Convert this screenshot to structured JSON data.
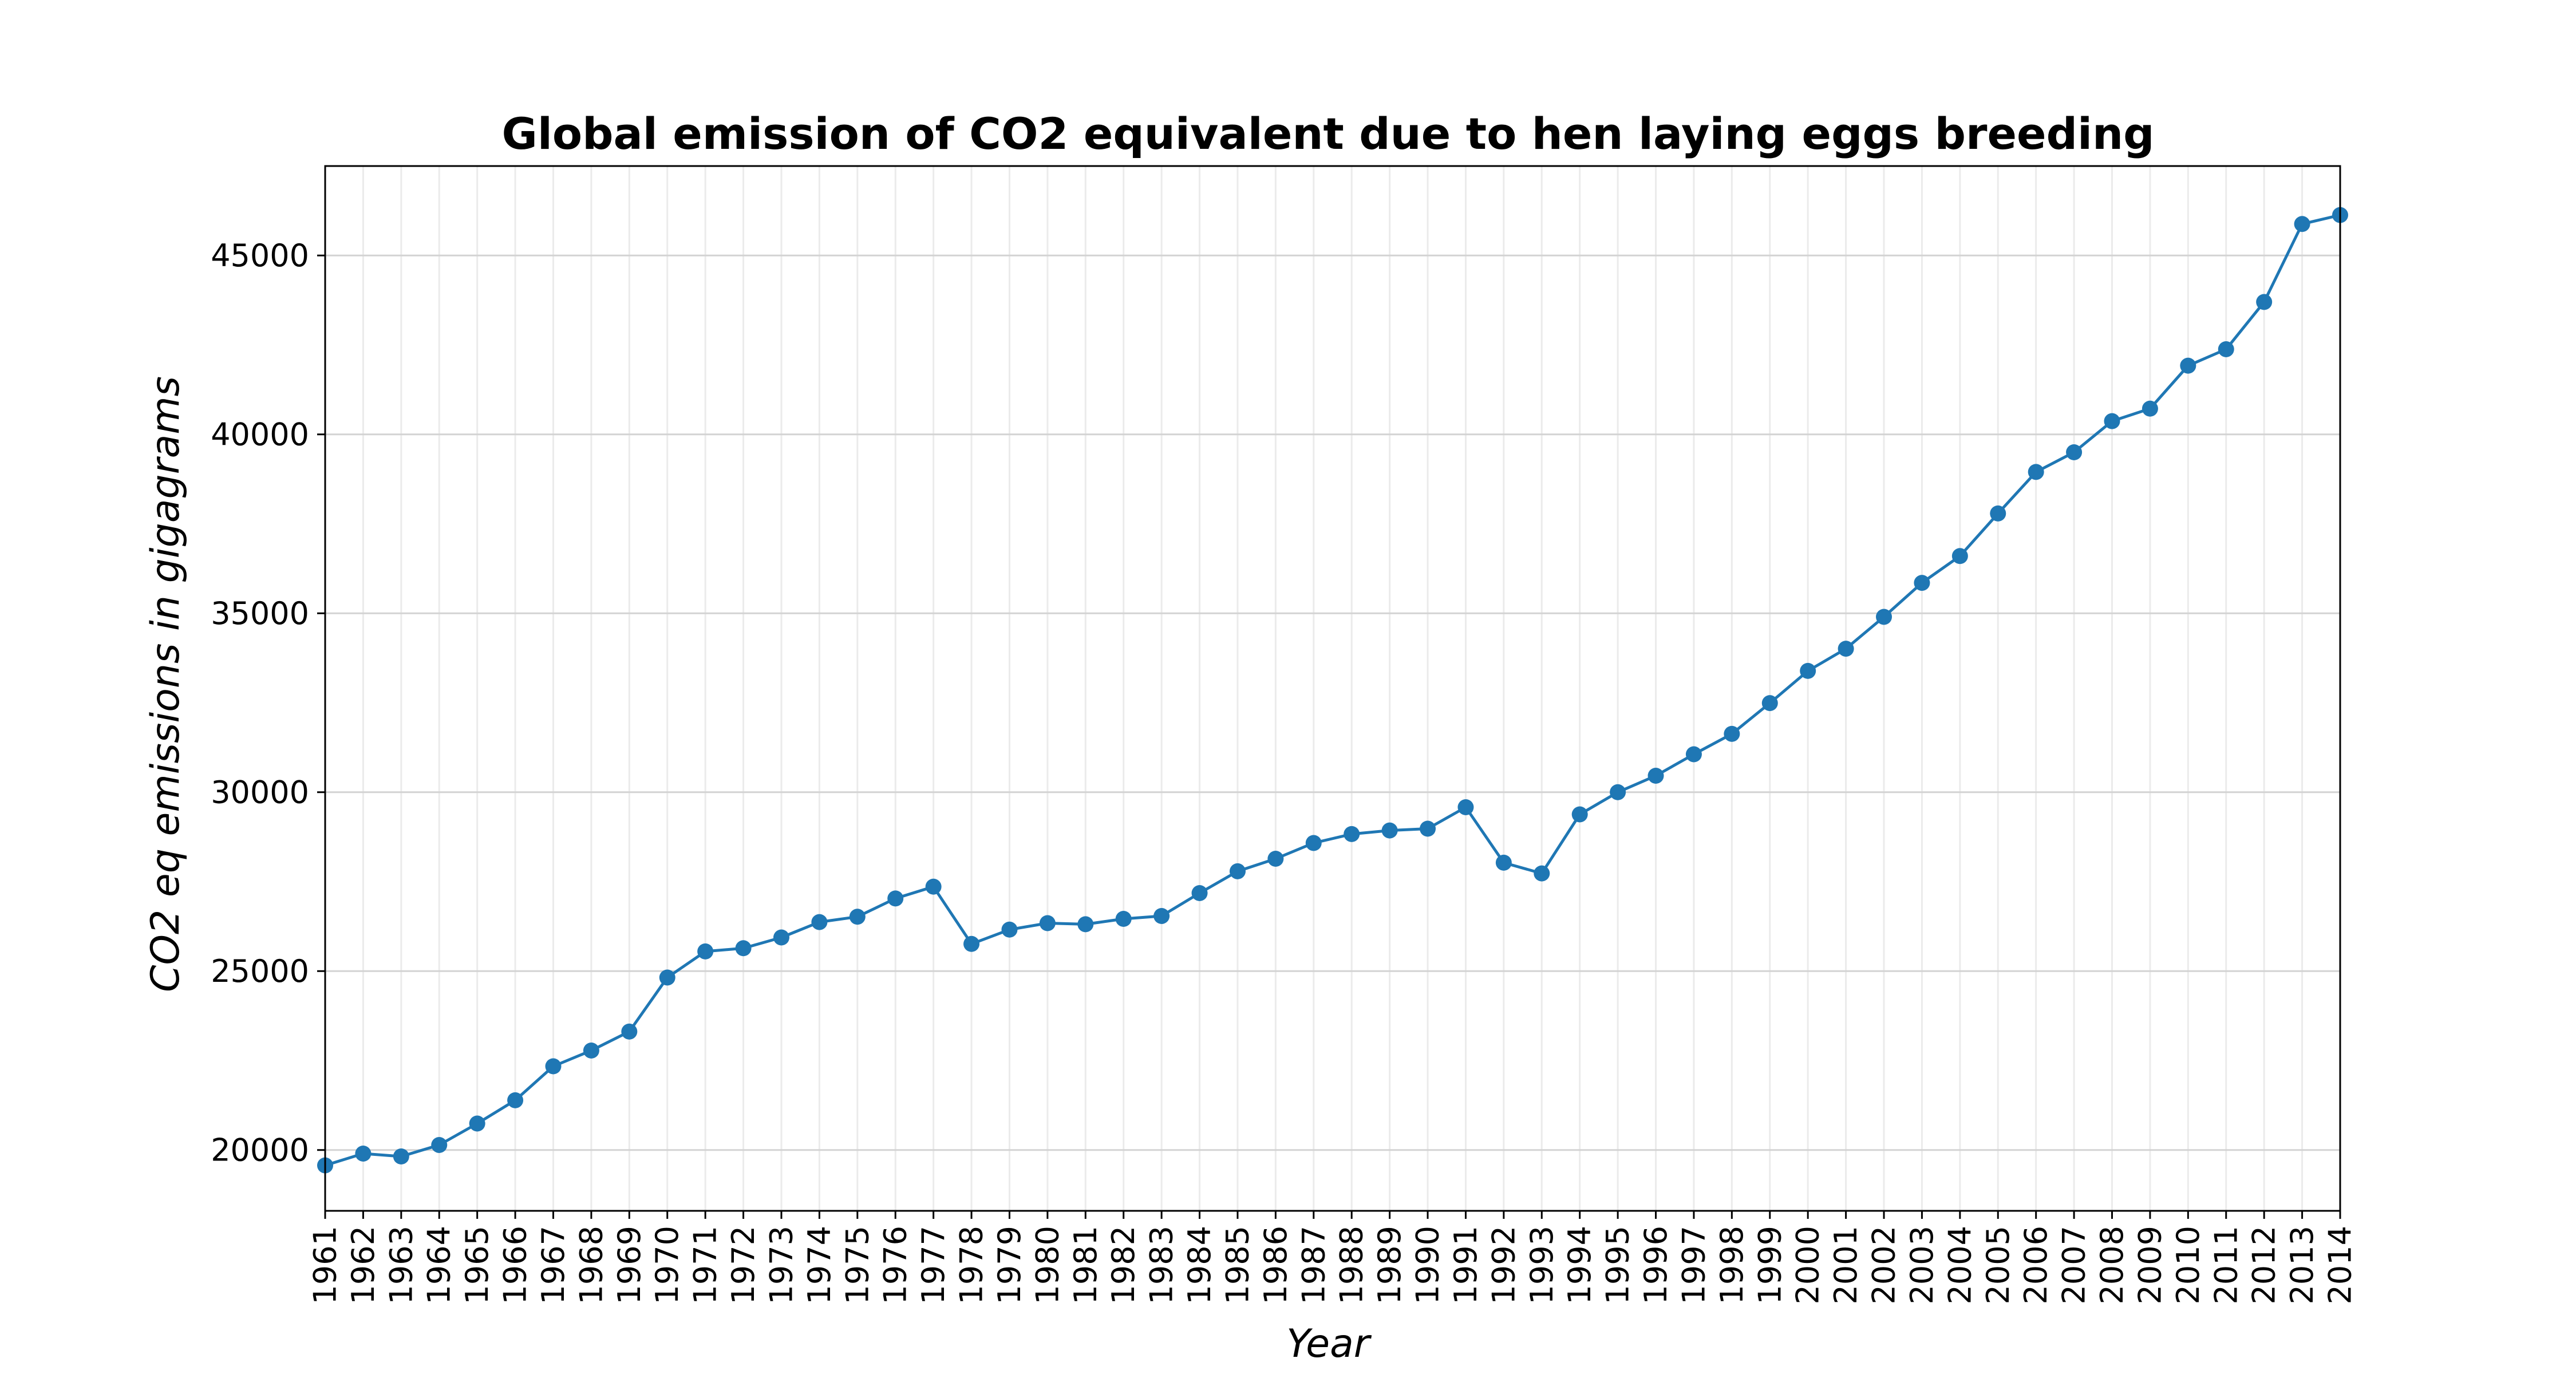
{
  "chart_data": {
    "type": "line",
    "title": "Global emission of CO2 equivalent due to hen laying eggs breeding",
    "xlabel": "Year",
    "ylabel": "CO2 eq emissions in gigagrams",
    "x": [
      1961,
      1962,
      1963,
      1964,
      1965,
      1966,
      1967,
      1968,
      1969,
      1970,
      1971,
      1972,
      1973,
      1974,
      1975,
      1976,
      1977,
      1978,
      1979,
      1980,
      1981,
      1982,
      1983,
      1984,
      1985,
      1986,
      1987,
      1988,
      1989,
      1990,
      1991,
      1992,
      1993,
      1994,
      1995,
      1996,
      1997,
      1998,
      1999,
      2000,
      2001,
      2002,
      2003,
      2004,
      2005,
      2006,
      2007,
      2008,
      2009,
      2010,
      2011,
      2012,
      2013,
      2014
    ],
    "xtick_labels": [
      "1961",
      "1962",
      "1963",
      "1964",
      "1965",
      "1966",
      "1967",
      "1968",
      "1969",
      "1970",
      "1971",
      "1972",
      "1973",
      "1974",
      "1975",
      "1976",
      "1977",
      "1978",
      "1979",
      "1980",
      "1981",
      "1982",
      "1983",
      "1984",
      "1985",
      "1986",
      "1987",
      "1988",
      "1989",
      "1990",
      "1991",
      "1992",
      "1993",
      "1994",
      "1995",
      "1996",
      "1997",
      "1998",
      "1999",
      "2000",
      "2001",
      "2002",
      "2003",
      "2004",
      "2005",
      "2006",
      "2007",
      "2008",
      "2009",
      "2010",
      "2011",
      "2012",
      "2013",
      "2014"
    ],
    "series": [
      {
        "values": [
          19570,
          19900,
          19820,
          20140,
          20740,
          21390,
          22340,
          22780,
          23310,
          24820,
          25550,
          25640,
          25940,
          26370,
          26520,
          27030,
          27360,
          25760,
          26160,
          26340,
          26310,
          26460,
          26540,
          27180,
          27790,
          28140,
          28580,
          28830,
          28930,
          28980,
          29580,
          28030,
          27730,
          29380,
          30000,
          30460,
          31060,
          31630,
          32490,
          33390,
          34010,
          34900,
          35850,
          36600,
          37790,
          38950,
          39500,
          40370,
          40720,
          41920,
          42380,
          43700,
          45880,
          46130
        ],
        "color": "#1f77b4"
      }
    ],
    "yticks": [
      20000,
      25000,
      30000,
      35000,
      40000,
      45000
    ],
    "ylim": [
      18300,
      47500
    ],
    "grid": true,
    "legend": "none"
  }
}
